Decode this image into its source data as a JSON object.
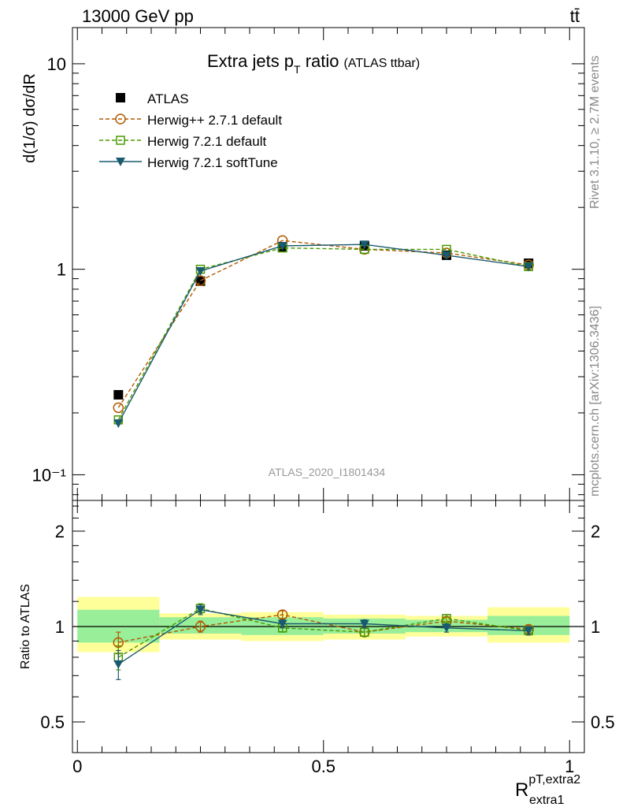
{
  "header": {
    "energy_label": "13000 GeV pp",
    "process_label": "tt̄"
  },
  "side_labels": {
    "rivet": "Rivet 3.1.10, ≥ 2.7M events",
    "mcplots": "mcplots.cern.ch [arXiv:1306.3436]"
  },
  "chart_data": {
    "type": "scatter",
    "title": "Extra jets p",
    "title_sub": "T",
    "title_rest": " ratio",
    "title_paren": "(ATLAS ttbar)",
    "watermark": "ATLAS_2020_I1801434",
    "ylabel": "d(1/σ) dσ/dR",
    "ratio_ylabel": "Ratio to ATLAS",
    "xlabel_main": "R",
    "xlabel_sup": "pT,extra2",
    "xlabel_sub": "extra1",
    "x_ticks": [
      "0",
      "0.5",
      "1"
    ],
    "y_ticks": [
      "10",
      "1",
      "10⁻¹"
    ],
    "ratio_y_ticks": [
      "2",
      "1",
      "0.5"
    ],
    "xlim": [
      -0.01,
      1.03
    ],
    "ylim": [
      0.075,
      15
    ],
    "ratio_ylim": [
      0.4,
      2.5
    ],
    "y_scale": "log",
    "ratio_y_scale": "log",
    "x": [
      0.0833,
      0.25,
      0.4167,
      0.5833,
      0.75,
      0.9167
    ],
    "bins": [
      [
        0.0,
        0.1667
      ],
      [
        0.1667,
        0.3333
      ],
      [
        0.3333,
        0.5
      ],
      [
        0.5,
        0.6667
      ],
      [
        0.6667,
        0.8333
      ],
      [
        0.8333,
        1.0
      ]
    ],
    "data_band": {
      "inner": [
        [
          0.89,
          1.13
        ],
        [
          0.95,
          1.07
        ],
        [
          0.94,
          1.07
        ],
        [
          0.95,
          1.06
        ],
        [
          0.96,
          1.05
        ],
        [
          0.94,
          1.08
        ]
      ],
      "outer": [
        [
          0.83,
          1.24
        ],
        [
          0.91,
          1.1
        ],
        [
          0.9,
          1.11
        ],
        [
          0.91,
          1.09
        ],
        [
          0.93,
          1.08
        ],
        [
          0.89,
          1.15
        ]
      ]
    },
    "series": [
      {
        "name": "ATLAS",
        "color": "#000000",
        "marker": "filled-square",
        "line": "none",
        "values": [
          0.245,
          0.875,
          1.28,
          1.3,
          1.17,
          1.07
        ],
        "ratio": [
          1,
          1,
          1,
          1,
          1,
          1
        ]
      },
      {
        "name": "Herwig++ 2.7.1 default",
        "color": "#b35a00",
        "marker": "open-circle",
        "line": "dashed",
        "values": [
          0.212,
          0.88,
          1.38,
          1.25,
          1.2,
          1.05
        ],
        "ratio": [
          0.89,
          1.0,
          1.09,
          0.96,
          1.04,
          0.98
        ],
        "ratio_err": [
          0.07,
          0.04,
          0.03,
          0.03,
          0.03,
          0.03
        ]
      },
      {
        "name": "Herwig 7.2.1 default",
        "color": "#4a9a00",
        "marker": "open-square",
        "line": "dashed",
        "values": [
          0.185,
          1.0,
          1.27,
          1.25,
          1.25,
          1.03
        ],
        "ratio": [
          0.8,
          1.14,
          0.99,
          0.96,
          1.06,
          0.97
        ],
        "ratio_err": [
          0.07,
          0.04,
          0.03,
          0.03,
          0.03,
          0.03
        ]
      },
      {
        "name": "Herwig 7.2.1 softTune",
        "color": "#1a5a6e",
        "marker": "filled-triangle-down",
        "line": "solid",
        "values": [
          0.178,
          0.98,
          1.3,
          1.32,
          1.17,
          1.03
        ],
        "ratio": [
          0.76,
          1.13,
          1.02,
          1.02,
          0.99,
          0.97
        ],
        "ratio_err": [
          0.08,
          0.04,
          0.03,
          0.03,
          0.03,
          0.03
        ]
      }
    ],
    "legend_position": "top-left"
  }
}
